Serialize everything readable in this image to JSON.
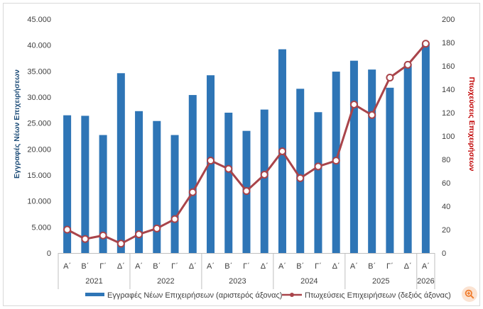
{
  "chart_data": {
    "type": "bar+line",
    "y_left": {
      "label": "Εγγραφές Νέων Επιχειρήσεων",
      "ticks": [
        "0",
        "5.000",
        "10.000",
        "15.000",
        "20.000",
        "25.000",
        "30.000",
        "35.000",
        "40.000",
        "45.000"
      ],
      "ylim": [
        0,
        45000
      ]
    },
    "y_right": {
      "label": "Πτωχεύσεις Επιχειρήσεων",
      "ticks": [
        "0",
        "20",
        "40",
        "60",
        "80",
        "100",
        "120",
        "140",
        "160",
        "180",
        "200"
      ],
      "ylim": [
        0,
        200
      ]
    },
    "categories": [
      "Α΄",
      "Β΄",
      "Γ΄",
      "Δ΄",
      "Α΄",
      "Β΄",
      "Γ΄",
      "Δ΄",
      "Α΄",
      "Β΄",
      "Γ΄",
      "Δ΄",
      "Α΄",
      "Β΄",
      "Γ΄",
      "Δ΄",
      "Α΄",
      "Β΄",
      "Γ΄",
      "Δ΄",
      "Α΄"
    ],
    "years": [
      {
        "label": "2021",
        "count": 4
      },
      {
        "label": "2022",
        "count": 4
      },
      {
        "label": "2023",
        "count": 4
      },
      {
        "label": "2024",
        "count": 4
      },
      {
        "label": "2025",
        "count": 4
      },
      {
        "label": "2026",
        "count": 1
      }
    ],
    "series": [
      {
        "name": "Εγγραφές Νέων Επιχειρήσεων (αριστερός άξονας)",
        "axis": "left",
        "kind": "bar",
        "color": "#2e75b6",
        "values": [
          26500,
          26400,
          22700,
          34600,
          27300,
          25400,
          22700,
          30400,
          34200,
          27000,
          23500,
          27600,
          39200,
          31600,
          27100,
          34900,
          37000,
          35300,
          31800,
          36400,
          40300
        ]
      },
      {
        "name": "Πτωχεύσεις Επιχειρήσεων (δεξιός άξονας)",
        "axis": "right",
        "kind": "line",
        "color": "#a9444a",
        "values": [
          20,
          12,
          15,
          8,
          16,
          21,
          29,
          52,
          79,
          72,
          53,
          67,
          87,
          64,
          74,
          79,
          127,
          118,
          150,
          161,
          179
        ]
      }
    ],
    "grid": false,
    "legend": "bottom"
  },
  "ui": {
    "zoom_icon": "zoom-in-icon",
    "accent": "#f07c2c"
  }
}
